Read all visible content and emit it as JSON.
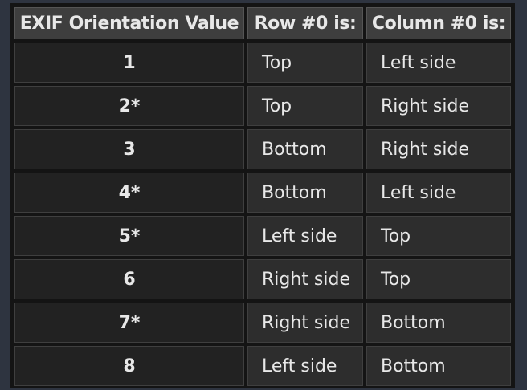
{
  "table": {
    "headers": {
      "value": "EXIF Orientation Value",
      "row0": "Row #0 is:",
      "col0": "Column #0 is:"
    },
    "rows": [
      {
        "value": "1",
        "row0": "Top",
        "col0": "Left side"
      },
      {
        "value": "2*",
        "row0": "Top",
        "col0": "Right side"
      },
      {
        "value": "3",
        "row0": "Bottom",
        "col0": "Right side"
      },
      {
        "value": "4*",
        "row0": "Bottom",
        "col0": "Left side"
      },
      {
        "value": "5*",
        "row0": "Left side",
        "col0": "Top"
      },
      {
        "value": "6",
        "row0": "Right side",
        "col0": "Top"
      },
      {
        "value": "7*",
        "row0": "Right side",
        "col0": "Bottom"
      },
      {
        "value": "8",
        "row0": "Left side",
        "col0": "Bottom"
      }
    ]
  },
  "colors": {
    "page_background": "#2e3440",
    "table_frame": "#141414",
    "header_background": "#3e3e3e",
    "value_cell_background": "#222222",
    "text_cell_background": "#2d2d2d",
    "text": "#e8e8e8"
  }
}
